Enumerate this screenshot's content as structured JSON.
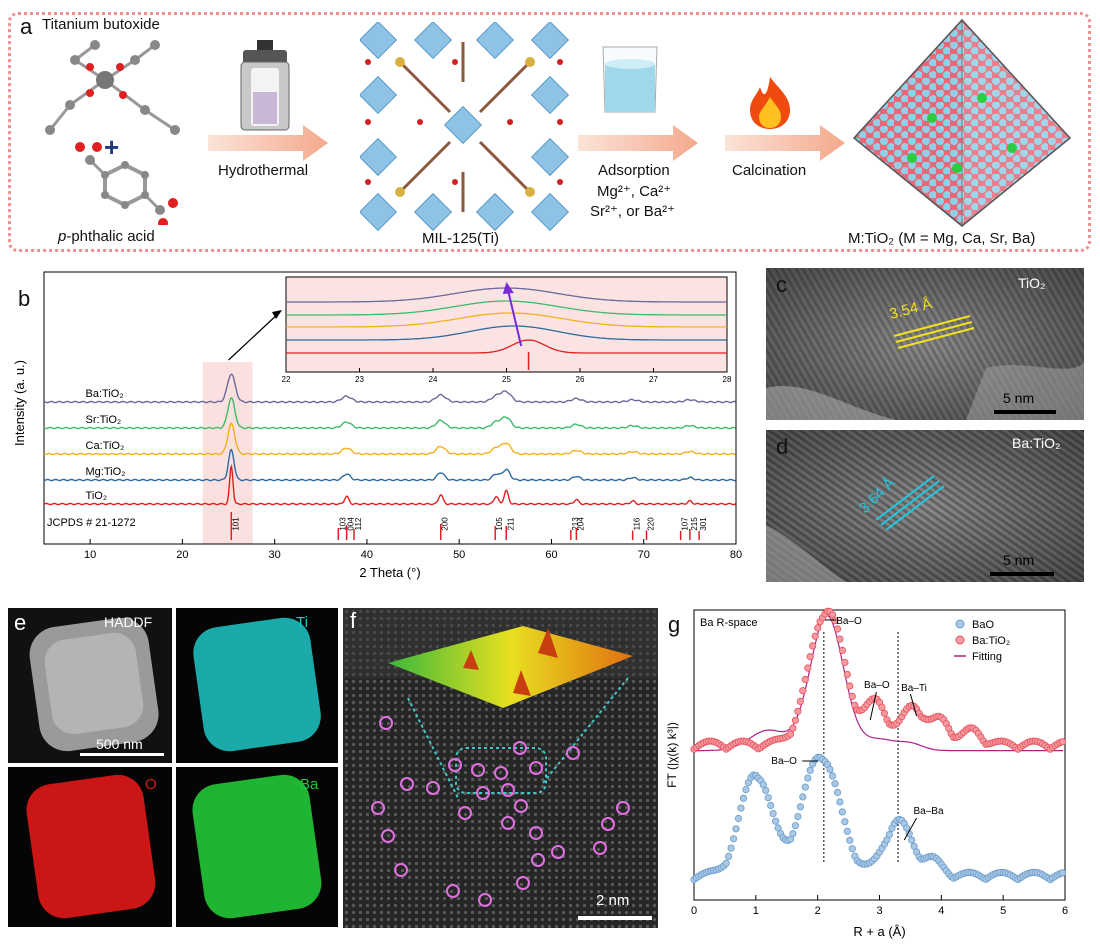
{
  "panel_a": {
    "label": "a",
    "reactant1": "Titanium  butoxide",
    "plus": "+",
    "reactant2_prefix": "p",
    "reactant2_rest": "-phthalic acid",
    "step1": "Hydrothermal",
    "mof_label": "MIL-125(Ti)",
    "step2_line1": "Adsorption",
    "step2_line2": "Mg²⁺, Ca²⁺",
    "step2_line3": "Sr²⁺, or Ba²⁺",
    "step3": "Calcination",
    "product_label": "M:TiO₂ (M = Mg, Ca, Sr, Ba)"
  },
  "panel_b": {
    "label": "b"
  },
  "panel_c": {
    "label": "c",
    "sample": "TiO₂",
    "spacing": "3.54 Å",
    "scale": "5 nm"
  },
  "panel_d": {
    "label": "d",
    "sample": "Ba:TiO₂",
    "spacing": "3.64 Å",
    "scale": "5 nm"
  },
  "panel_e": {
    "label": "e",
    "haddf": "HADDF",
    "ti": "Ti",
    "o": "O",
    "ba": "Ba",
    "scale": "500 nm",
    "colors": {
      "ti": "#1ec8c8",
      "o": "#e01818",
      "ba": "#22c837"
    }
  },
  "panel_f": {
    "label": "f",
    "scale": "2 nm"
  },
  "panel_g": {
    "label": "g"
  },
  "chart_data": [
    {
      "type": "line",
      "panel": "b",
      "xlabel": "2 Theta (°)",
      "ylabel": "Intensity (a. u.)",
      "xlim": [
        5,
        80
      ],
      "xticks": [
        10,
        20,
        30,
        40,
        50,
        60,
        70,
        80
      ],
      "series": [
        {
          "name": "Ba:TiO₂",
          "color": "#6a6a9c"
        },
        {
          "name": "Sr:TiO₂",
          "color": "#3dbb6a"
        },
        {
          "name": "Ca:TiO₂",
          "color": "#f2b01e"
        },
        {
          "name": "Mg:TiO₂",
          "color": "#2e6aa1"
        },
        {
          "name": "TiO₂",
          "color": "#e02020"
        }
      ],
      "peaks": [
        25.3,
        37.8,
        48.0,
        54.0,
        55.1,
        62.7,
        68.8,
        75.0
      ],
      "reference": {
        "label": "JCPDS # 21-1272",
        "lines": [
          {
            "pos": 25.3,
            "h": 1.0,
            "hkl": "101"
          },
          {
            "pos": 36.9,
            "h": 0.2,
            "hkl": "103"
          },
          {
            "pos": 37.8,
            "h": 0.35,
            "hkl": "004"
          },
          {
            "pos": 38.6,
            "h": 0.15,
            "hkl": "112"
          },
          {
            "pos": 48.0,
            "h": 0.4,
            "hkl": "200"
          },
          {
            "pos": 53.9,
            "h": 0.3,
            "hkl": "105"
          },
          {
            "pos": 55.1,
            "h": 0.3,
            "hkl": "211"
          },
          {
            "pos": 62.1,
            "h": 0.1,
            "hkl": "213"
          },
          {
            "pos": 62.7,
            "h": 0.2,
            "hkl": "204"
          },
          {
            "pos": 68.8,
            "h": 0.08,
            "hkl": "116"
          },
          {
            "pos": 70.3,
            "h": 0.08,
            "hkl": "220"
          },
          {
            "pos": 74.0,
            "h": 0.06,
            "hkl": "107"
          },
          {
            "pos": 75.0,
            "h": 0.15,
            "hkl": "215"
          },
          {
            "pos": 76.0,
            "h": 0.05,
            "hkl": "301"
          }
        ]
      },
      "inset": {
        "xlim": [
          22,
          28
        ],
        "xticks": [
          22,
          23,
          24,
          25,
          26,
          27,
          28
        ],
        "peak_positions": {
          "TiO₂": 25.3,
          "Mg:TiO₂": 25.1,
          "Ca:TiO₂": 25.05,
          "Sr:TiO₂": 25.0,
          "Ba:TiO₂": 25.0
        }
      }
    },
    {
      "type": "line",
      "panel": "g",
      "annotation": "Ba R-space",
      "xlabel": "R + a (Å)",
      "ylabel": "FT (|χ(k) k³|)",
      "xlim": [
        0,
        6
      ],
      "xticks": [
        0,
        1,
        2,
        3,
        4,
        5,
        6
      ],
      "series": [
        {
          "name": "BaO",
          "color": "#6a9ccc",
          "peaks": [
            1.0,
            2.05,
            3.3
          ]
        },
        {
          "name": "Ba:TiO₂",
          "color": "#e8505c",
          "peaks": [
            2.15,
            2.95,
            3.55
          ]
        },
        {
          "name": "Fitting",
          "color": "#b0208c"
        }
      ],
      "annotations": [
        "Ba–O",
        "Ba–O",
        "Ba–Ti",
        "Ba–O",
        "Ba–Ba"
      ],
      "vlines": [
        2.1,
        3.3
      ]
    }
  ]
}
